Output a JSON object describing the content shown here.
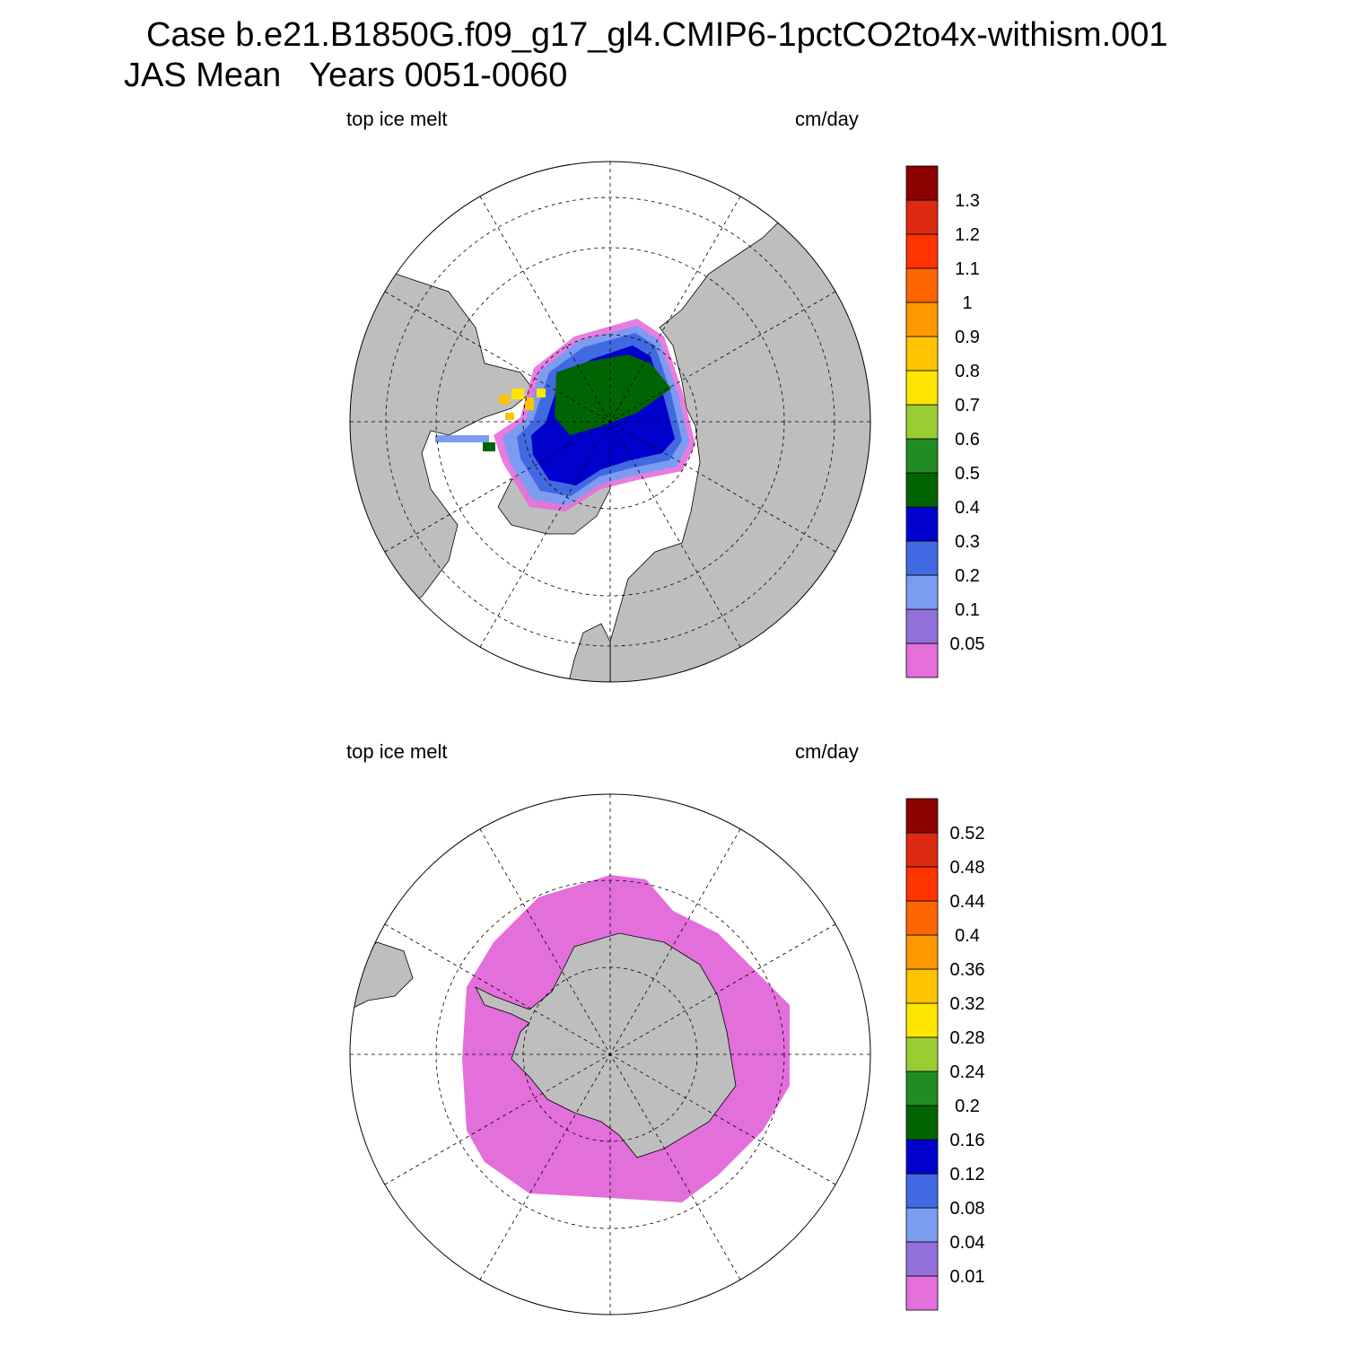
{
  "title": {
    "line1": "Case b.e21.B1850G.f09_g17_gl4.CMIP6-1pctCO2to4x-withism.001",
    "line2": "JAS Mean   Years 0051-0060"
  },
  "panels": [
    {
      "hemisphere": "north",
      "variable_label": "top ice melt",
      "unit_label": "cm/day",
      "colorbar": {
        "labels": [
          "0.05",
          "0.1",
          "0.2",
          "0.3",
          "0.4",
          "0.5",
          "0.6",
          "0.7",
          "0.8",
          "0.9",
          "1",
          "1.1",
          "1.2",
          "1.3"
        ]
      }
    },
    {
      "hemisphere": "south",
      "variable_label": "top ice melt",
      "unit_label": "cm/day",
      "colorbar": {
        "labels": [
          "0.01",
          "0.04",
          "0.08",
          "0.12",
          "0.16",
          "0.2",
          "0.24",
          "0.28",
          "0.32",
          "0.36",
          "0.4",
          "0.44",
          "0.48",
          "0.52"
        ]
      }
    }
  ],
  "colors": {
    "land": "#bebebe",
    "ocean": "#ffffff",
    "palette": [
      "#e36fdb",
      "#9370db",
      "#7b9cf0",
      "#4169e1",
      "#0000cd",
      "#006400",
      "#228b22",
      "#9acd32",
      "#ffe600",
      "#ffc300",
      "#ff9900",
      "#ff6600",
      "#ff3300",
      "#dd2a10",
      "#8b0000"
    ]
  }
}
